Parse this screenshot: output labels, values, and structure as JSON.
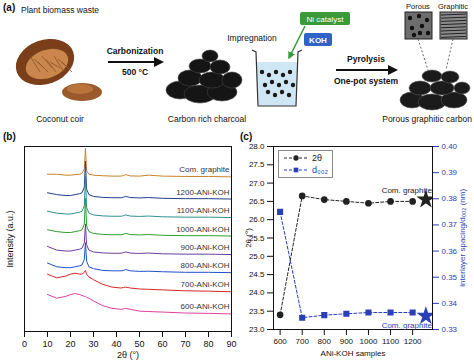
{
  "diagram": {
    "panel_label": "(a)",
    "source": {
      "title": "Plant biomass waste",
      "caption": "Coconut coir"
    },
    "arrow1": {
      "label": "Carbonization",
      "sublabel": "500 °C"
    },
    "intermediate": {
      "caption": "Carbon rich charcoal"
    },
    "beaker": {
      "label": "Impregnation",
      "reagents": [
        "Ni catalyst",
        "KOH"
      ]
    },
    "arrow2": {
      "label": "Pyrolysis",
      "sublabel": "One-pot system"
    },
    "product": {
      "insets": [
        "Porous",
        "Graphitic"
      ],
      "caption": "Porous graphitic carbon"
    }
  },
  "chart_data": [
    {
      "type": "line",
      "title": "(b)",
      "xlabel": "2θ (°)",
      "ylabel": "Intensity (a.u.)",
      "x": [
        10,
        14,
        18,
        20,
        22,
        24,
        25,
        26,
        26.5,
        27,
        28,
        30,
        34,
        38,
        42,
        43,
        44,
        46,
        50,
        54,
        60,
        70,
        80,
        90
      ],
      "xlim": [
        0,
        90
      ],
      "xticks": [
        0,
        10,
        20,
        30,
        40,
        50,
        60,
        70,
        80,
        90
      ],
      "ylim": [
        0,
        100
      ],
      "tick_labels": "x",
      "series": [
        {
          "name": "Com. graphite",
          "color": "#c8842c",
          "values": [
            85,
            85,
            84.5,
            84.5,
            84.8,
            85,
            85.5,
            88,
            99,
            87,
            85,
            84.5,
            84.2,
            84,
            84,
            84.3,
            84.8,
            84.1,
            84,
            84.5,
            84,
            83.8,
            83.8,
            83.6
          ]
        },
        {
          "name": "1200-ANi-KOH",
          "color": "#1f3e8c",
          "values": [
            75,
            74,
            73.5,
            73.5,
            74,
            74.5,
            75,
            78,
            92,
            77,
            74,
            73,
            72.5,
            72.3,
            72.3,
            72.6,
            73,
            72.4,
            72.2,
            72.4,
            72,
            71.8,
            71.8,
            71.6
          ]
        },
        {
          "name": "1100-ANi-KOH",
          "color": "#2f8f8f",
          "values": [
            65,
            64,
            63.5,
            63.5,
            64,
            64.5,
            65,
            68,
            84,
            67,
            64,
            63,
            62.5,
            62.3,
            62.3,
            62.6,
            63,
            62.4,
            62.2,
            62.4,
            62,
            61.8,
            61.8,
            61.6
          ]
        },
        {
          "name": "1000-ANi-KOH",
          "color": "#2ca02c",
          "values": [
            55,
            54,
            53.5,
            53.5,
            54,
            54.5,
            55,
            58,
            72,
            57,
            54,
            53,
            52.5,
            52.3,
            52.3,
            52.6,
            53,
            52.4,
            52.2,
            52.4,
            52,
            51.8,
            51.8,
            51.6
          ]
        },
        {
          "name": "900-ANi-KOH",
          "color": "#6a3d9a",
          "values": [
            46,
            44,
            43.5,
            43.5,
            44,
            44.5,
            45,
            48,
            58,
            47,
            44,
            43,
            42.5,
            42.3,
            42.3,
            42.6,
            43,
            42.4,
            42.2,
            42.4,
            42,
            41.8,
            41.8,
            41.6
          ]
        },
        {
          "name": "800-ANi-KOH",
          "color": "#1f4fc8",
          "values": [
            37,
            35,
            34.5,
            34.5,
            35,
            35.5,
            36,
            39,
            48,
            38,
            35,
            34,
            33,
            32.8,
            32.8,
            33,
            33.5,
            32.8,
            32.5,
            32.6,
            32.3,
            32,
            32,
            31.8
          ]
        },
        {
          "name": "700-ANi-KOH",
          "color": "#d62728",
          "values": [
            31,
            29,
            30,
            31,
            31.5,
            31,
            31,
            32,
            33,
            31,
            29.5,
            28,
            25.5,
            24,
            23.5,
            23.8,
            24,
            23.5,
            23,
            22.8,
            22.5,
            22,
            21.8,
            21.5
          ]
        },
        {
          "name": "600-ANi-KOH",
          "color": "#e040a0",
          "values": [
            20,
            18,
            19,
            20,
            20.5,
            20,
            19.5,
            19,
            19,
            18.5,
            18,
            16.5,
            14,
            12.5,
            12,
            12.2,
            12.5,
            12,
            11,
            10.8,
            10.5,
            10,
            9.8,
            9.5
          ]
        }
      ]
    },
    {
      "type": "line",
      "title": "(c)",
      "xlabel": "ANi-KOH samples",
      "ylabel": "2θ (°)",
      "y2label": "Interlayer spacing/d₀₀₂ (nm)",
      "x": [
        600,
        700,
        800,
        900,
        1000,
        1100,
        1200
      ],
      "xlim": [
        570,
        1290
      ],
      "xticks": [
        600,
        700,
        800,
        900,
        1000,
        1100,
        1200
      ],
      "ylim": [
        23,
        28
      ],
      "yticks": [
        {
          "value": 23,
          "label": "23.0"
        },
        {
          "value": 23.5,
          "label": "23.5"
        },
        {
          "value": 24,
          "label": "24.0"
        },
        {
          "value": 24.5,
          "label": "24.5"
        },
        {
          "value": 25,
          "label": "25.0"
        },
        {
          "value": 25.5,
          "label": "25.5"
        },
        {
          "value": 26,
          "label": "26.0"
        },
        {
          "value": 26.5,
          "label": "26.5"
        },
        {
          "value": 27,
          "label": "27.0"
        },
        {
          "value": 27.5,
          "label": "27.5"
        },
        {
          "value": 28,
          "label": "28.0"
        }
      ],
      "y2lim": [
        0.33,
        0.4
      ],
      "y2ticks": [
        0.33,
        0.34,
        0.35,
        0.36,
        0.37,
        0.38,
        0.39,
        {
          "value": 0.4,
          "label": "0.40"
        }
      ],
      "legend": "top-left",
      "series": [
        {
          "name": "2θ",
          "color": "#222222",
          "marker": "circle",
          "line_style": "dashed",
          "values": [
            23.4,
            26.65,
            26.55,
            26.5,
            26.45,
            26.5,
            26.5
          ]
        },
        {
          "name": "d₀₀₂",
          "color": "#2a3fb8",
          "marker": "square",
          "line_style": "dashed",
          "axis": "y2",
          "values": [
            0.375,
            0.3345,
            0.3355,
            0.336,
            0.3365,
            0.3365,
            0.3365
          ]
        },
        {
          "name": "Com. graphite",
          "type": "scatter",
          "marker": "star",
          "color": "#222222",
          "x": [
            1260
          ],
          "values": [
            26.55
          ]
        },
        {
          "name": "Com. graphite",
          "type": "scatter",
          "marker": "star",
          "color": "#2a3fb8",
          "axis": "y2",
          "x": [
            1260
          ],
          "values": [
            0.3352
          ]
        }
      ]
    }
  ]
}
